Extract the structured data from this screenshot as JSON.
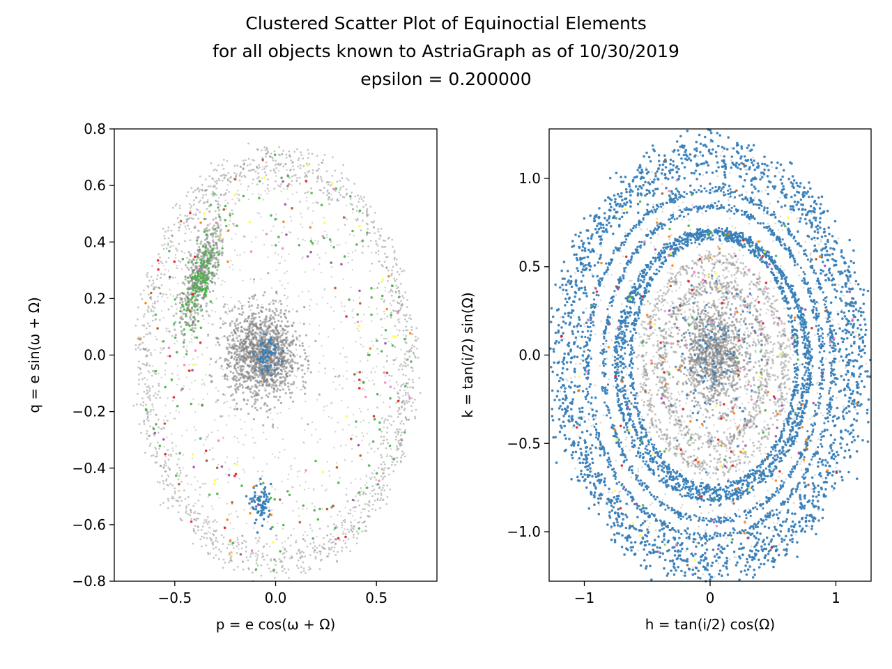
{
  "figure": {
    "title_lines": [
      "Clustered Scatter Plot of Equinoctial Elements",
      "for all objects known to AstriaGraph as of 10/30/2019",
      "epsilon = 0.200000"
    ]
  },
  "chart_data": [
    {
      "type": "scatter",
      "xlabel": "p = e cos(ω + Ω)",
      "ylabel": "q = e sin(ω + Ω)",
      "xlim": [
        -0.8,
        0.8
      ],
      "ylim": [
        -0.8,
        0.8
      ],
      "xticks": [
        -0.5,
        0.0,
        0.5
      ],
      "xtick_labels": [
        "−0.5",
        "0.0",
        "0.5"
      ],
      "yticks": [
        -0.8,
        -0.6,
        -0.4,
        -0.2,
        0.0,
        0.2,
        0.4,
        0.6,
        0.8
      ],
      "ytick_labels": [
        "−0.8",
        "−0.6",
        "−0.4",
        "−0.2",
        "0.0",
        "0.2",
        "0.4",
        "0.6",
        "0.8"
      ],
      "grid": false,
      "structures": {
        "outer_ring": {
          "center": [
            0.0,
            -0.03
          ],
          "radius_x": 0.68,
          "radius_y": 0.74,
          "note": "unclustered points (grey) forming an elliptical ring"
        },
        "central_blob": {
          "center": [
            -0.07,
            0.0
          ],
          "spread": 0.09,
          "cluster_color": "#377eb8"
        },
        "upper_left_blob": {
          "center": [
            -0.37,
            0.28
          ],
          "spread": 0.07,
          "cluster_color": "#4daf4a"
        },
        "lower_blob": {
          "center": [
            -0.07,
            -0.53
          ],
          "spread": 0.025,
          "cluster_color": "#377eb8"
        }
      },
      "cluster_colors": [
        "#377eb8",
        "#4daf4a",
        "#ff7f00",
        "#e41a1c",
        "#984ea3",
        "#f781bf",
        "#ffff33",
        "#a65628"
      ],
      "noise_color": "#7f7f7f"
    },
    {
      "type": "scatter",
      "xlabel": "h = tan(i/2) cos(Ω)",
      "ylabel": "k = tan(i/2) sin(Ω)",
      "xlim": [
        -1.28,
        1.28
      ],
      "ylim": [
        -1.28,
        1.28
      ],
      "xticks": [
        -1,
        0,
        1
      ],
      "xtick_labels": [
        "−1",
        "0",
        "1"
      ],
      "yticks": [
        -1.0,
        -0.5,
        0.0,
        0.5,
        1.0
      ],
      "ytick_labels": [
        "−1.0",
        "−0.5",
        "0.0",
        "0.5",
        "1.0"
      ],
      "grid": false,
      "rings": [
        {
          "radius_x": 1.15,
          "radius_y": 1.15,
          "center": [
            0.0,
            -0.03
          ],
          "thickness": 0.08,
          "color": "#377eb8"
        },
        {
          "radius_x": 0.98,
          "radius_y": 0.98,
          "center": [
            0.0,
            -0.05
          ],
          "thickness": 0.012,
          "color": "#377eb8"
        },
        {
          "radius_x": 0.87,
          "radius_y": 0.89,
          "center": [
            0.02,
            -0.05
          ],
          "thickness": 0.012,
          "color": "#377eb8"
        },
        {
          "radius_x": 0.77,
          "radius_y": 0.76,
          "center": [
            0.02,
            -0.06
          ],
          "thickness": 0.012,
          "color": "#377eb8"
        },
        {
          "radius_x": 0.73,
          "radius_y": 0.74,
          "center": [
            0.03,
            -0.04
          ],
          "thickness": 0.012,
          "color": "#377eb8"
        },
        {
          "radius_x": 0.66,
          "radius_y": 0.71,
          "center": [
            0.03,
            -0.04
          ],
          "thickness": 0.012,
          "color": "#377eb8"
        },
        {
          "radius_x": 0.56,
          "radius_y": 0.58,
          "center": [
            0.03,
            -0.05
          ],
          "thickness": 0.03,
          "color": "#7f7f7f"
        },
        {
          "radius_x": 0.42,
          "radius_y": 0.45,
          "center": [
            0.03,
            -0.05
          ],
          "thickness": 0.03,
          "color": "#7f7f7f"
        }
      ],
      "central_blob": {
        "center": [
          0.03,
          0.0
        ],
        "spread": 0.14,
        "color": "#7f7f7f"
      },
      "cluster_colors": [
        "#377eb8",
        "#4daf4a",
        "#ff7f00",
        "#e41a1c",
        "#984ea3",
        "#f781bf",
        "#ffff33",
        "#a65628"
      ],
      "noise_color": "#7f7f7f"
    }
  ]
}
